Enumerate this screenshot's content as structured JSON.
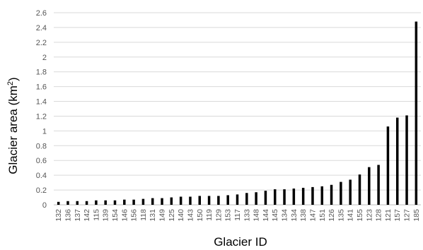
{
  "chart_data": {
    "type": "bar",
    "xlabel": "Glacier ID",
    "ylabel_main": "Glacier area (km",
    "ylabel_sup": "2",
    "ylabel_end": ")",
    "ylim": [
      0,
      2.6
    ],
    "yticks": [
      "0",
      "0.2",
      "0.4",
      "0.6",
      "0.8",
      "1",
      "1.2",
      "1.4",
      "1.6",
      "1.8",
      "2",
      "2.2",
      "2.4",
      "2.6"
    ],
    "grid": true,
    "categories": [
      "132",
      "136",
      "137",
      "142",
      "115",
      "139",
      "154",
      "146",
      "156",
      "118",
      "131",
      "149",
      "125",
      "140",
      "143",
      "150",
      "119",
      "129",
      "153",
      "117",
      "133",
      "148",
      "144",
      "145",
      "134",
      "134",
      "138",
      "147",
      "151",
      "126",
      "135",
      "141",
      "155",
      "123",
      "128",
      "121",
      "157",
      "127",
      "185"
    ],
    "values": [
      0.04,
      0.05,
      0.05,
      0.05,
      0.06,
      0.06,
      0.06,
      0.07,
      0.07,
      0.08,
      0.09,
      0.09,
      0.1,
      0.11,
      0.11,
      0.12,
      0.12,
      0.12,
      0.13,
      0.14,
      0.16,
      0.17,
      0.19,
      0.21,
      0.21,
      0.22,
      0.23,
      0.24,
      0.25,
      0.27,
      0.31,
      0.34,
      0.41,
      0.51,
      0.54,
      1.06,
      1.18,
      1.21,
      2.48
    ]
  }
}
